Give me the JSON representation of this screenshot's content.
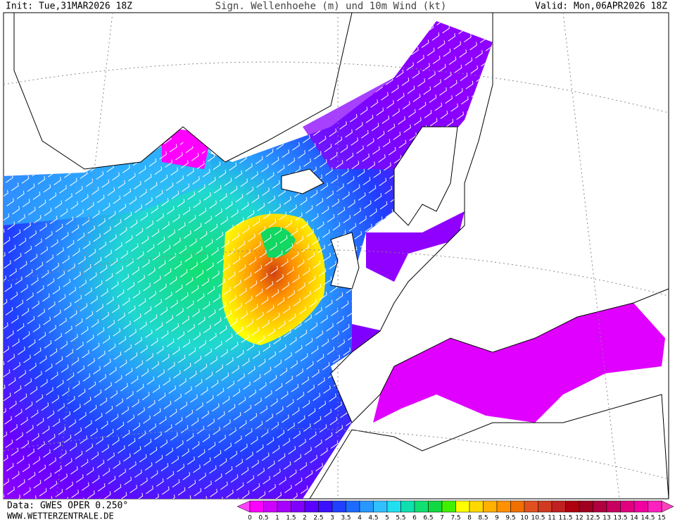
{
  "header": {
    "init": "Init: Tue,31MAR2026 18Z",
    "title": "Sign. Wellenhoehe (m) und 10m Wind (kt)",
    "valid": "Valid: Mon,06APR2026 18Z"
  },
  "footer": {
    "data": "Data: GWES OPER 0.250°",
    "site": "WWW.WETTERZENTRALE.DE"
  },
  "colorbar": {
    "ticks": [
      0,
      0.5,
      1,
      1.5,
      2,
      2.5,
      3,
      3.5,
      4,
      4.5,
      5,
      5.5,
      6,
      6.5,
      7,
      7.5,
      8,
      8.5,
      9,
      9.5,
      10,
      10.5,
      11,
      11.5,
      12,
      12.5,
      13,
      13.5,
      14,
      14.5,
      15
    ],
    "under_color": "#ff40ff",
    "over_color": "#ff40c0",
    "colors": [
      "#ff00ff",
      "#d000ff",
      "#a800ff",
      "#8000ff",
      "#5a00ff",
      "#3a10ff",
      "#2040ff",
      "#1e6cff",
      "#2898ff",
      "#30c0ff",
      "#20e0f0",
      "#10e0b0",
      "#10e070",
      "#10d840",
      "#40f000",
      "#ffff00",
      "#ffd800",
      "#ffb000",
      "#ff9000",
      "#f07000",
      "#e05020",
      "#d03a20",
      "#c02020",
      "#b00010",
      "#a00020",
      "#b00040",
      "#c80060",
      "#e00080",
      "#f000a0",
      "#ff20c0"
    ]
  }
}
